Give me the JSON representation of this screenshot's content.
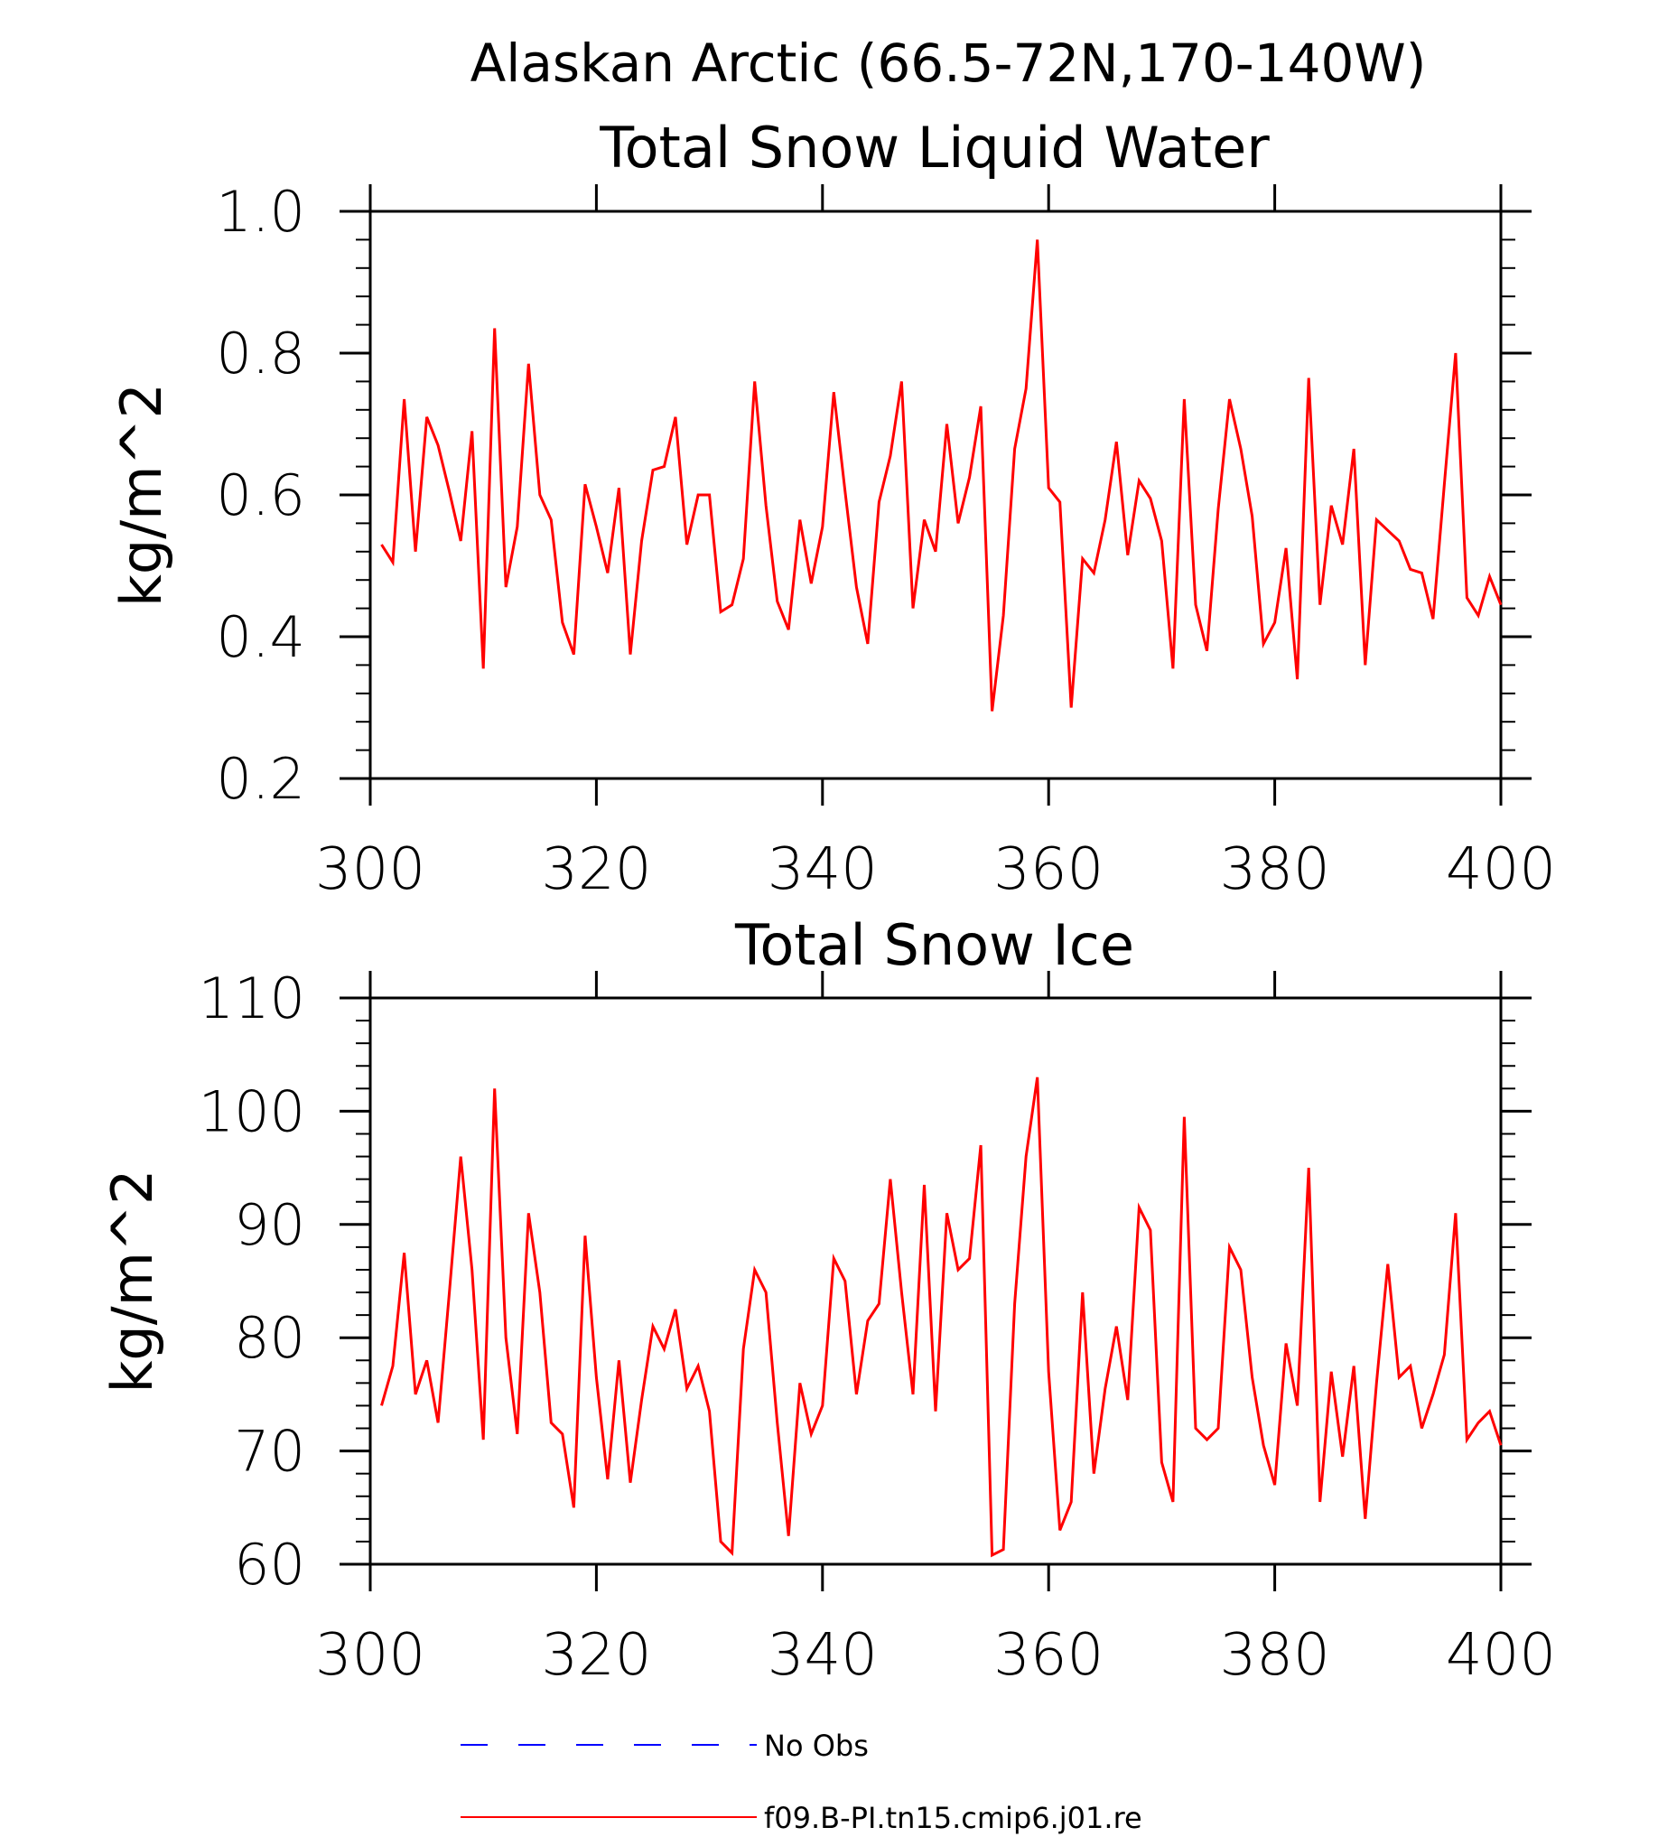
{
  "header": {
    "title": "Alaskan Arctic (66.5-72N,170-140W)"
  },
  "chart_data": [
    {
      "type": "line",
      "title": "Total Snow Liquid Water",
      "ylabel": "kg/m^2",
      "xlabel": "",
      "xlim": [
        300,
        400
      ],
      "ylim": [
        0.2,
        1.0
      ],
      "x_ticks": [
        300,
        320,
        340,
        360,
        380,
        400
      ],
      "y_ticks": [
        0.2,
        0.4,
        0.6,
        0.8,
        1.0
      ],
      "x_tick_labels": [
        "300",
        "320",
        "340",
        "360",
        "380",
        "400"
      ],
      "y_tick_labels": [
        "0.2",
        "0.4",
        "0.6",
        "0.8",
        "1.0"
      ],
      "series": [
        {
          "name": "f09.B-PI.tn15.cmip6.j01.re",
          "color": "#ff0000",
          "x": [
            301,
            302,
            303,
            304,
            305,
            306,
            307,
            308,
            309,
            310,
            311,
            312,
            313,
            314,
            315,
            316,
            317,
            318,
            319,
            320,
            321,
            322,
            323,
            324,
            325,
            326,
            327,
            328,
            329,
            330,
            331,
            332,
            333,
            334,
            335,
            336,
            337,
            338,
            339,
            340,
            341,
            342,
            343,
            344,
            345,
            346,
            347,
            348,
            349,
            350,
            351,
            352,
            353,
            354,
            355,
            356,
            357,
            358,
            359,
            360,
            361,
            362,
            363,
            364,
            365,
            366,
            367,
            368,
            369,
            370,
            371,
            372,
            373,
            374,
            375,
            376,
            377,
            378,
            379,
            380,
            381,
            382,
            383,
            384,
            385,
            386,
            387,
            388,
            389,
            390,
            391,
            392,
            393,
            394,
            395,
            396,
            397,
            398,
            399,
            400
          ],
          "values": [
            0.53,
            0.505,
            0.735,
            0.52,
            0.71,
            0.67,
            0.605,
            0.535,
            0.69,
            0.355,
            0.835,
            0.47,
            0.555,
            0.785,
            0.6,
            0.565,
            0.42,
            0.375,
            0.615,
            0.555,
            0.49,
            0.61,
            0.375,
            0.535,
            0.635,
            0.64,
            0.71,
            0.53,
            0.6,
            0.6,
            0.435,
            0.445,
            0.51,
            0.76,
            0.585,
            0.45,
            0.41,
            0.565,
            0.475,
            0.555,
            0.745,
            0.605,
            0.47,
            0.39,
            0.59,
            0.655,
            0.76,
            0.44,
            0.565,
            0.52,
            0.7,
            0.56,
            0.625,
            0.725,
            0.295,
            0.43,
            0.665,
            0.75,
            0.96,
            0.61,
            0.59,
            0.3,
            0.51,
            0.49,
            0.565,
            0.675,
            0.515,
            0.62,
            0.595,
            0.535,
            0.355,
            0.735,
            0.445,
            0.38,
            0.58,
            0.735,
            0.665,
            0.57,
            0.39,
            0.42,
            0.525,
            0.34,
            0.765,
            0.445,
            0.585,
            0.53,
            0.665,
            0.36,
            0.565,
            0.55,
            0.535,
            0.495,
            0.49,
            0.425,
            0.615,
            0.8,
            0.455,
            0.43,
            0.485,
            0.445
          ]
        }
      ]
    },
    {
      "type": "line",
      "title": "Total Snow Ice",
      "ylabel": "kg/m^2",
      "xlabel": "",
      "xlim": [
        300,
        400
      ],
      "ylim": [
        60,
        110
      ],
      "x_ticks": [
        300,
        320,
        340,
        360,
        380,
        400
      ],
      "y_ticks": [
        60,
        70,
        80,
        90,
        100,
        110
      ],
      "x_tick_labels": [
        "300",
        "320",
        "340",
        "360",
        "380",
        "400"
      ],
      "y_tick_labels": [
        "60",
        "70",
        "80",
        "90",
        "100",
        "110"
      ],
      "series": [
        {
          "name": "f09.B-PI.tn15.cmip6.j01.re",
          "color": "#ff0000",
          "x": [
            301,
            302,
            303,
            304,
            305,
            306,
            307,
            308,
            309,
            310,
            311,
            312,
            313,
            314,
            315,
            316,
            317,
            318,
            319,
            320,
            321,
            322,
            323,
            324,
            325,
            326,
            327,
            328,
            329,
            330,
            331,
            332,
            333,
            334,
            335,
            336,
            337,
            338,
            339,
            340,
            341,
            342,
            343,
            344,
            345,
            346,
            347,
            348,
            349,
            350,
            351,
            352,
            353,
            354,
            355,
            356,
            357,
            358,
            359,
            360,
            361,
            362,
            363,
            364,
            365,
            366,
            367,
            368,
            369,
            370,
            371,
            372,
            373,
            374,
            375,
            376,
            377,
            378,
            379,
            380,
            381,
            382,
            383,
            384,
            385,
            386,
            387,
            388,
            389,
            390,
            391,
            392,
            393,
            394,
            395,
            396,
            397,
            398,
            399,
            400
          ],
          "values": [
            74,
            77.5,
            87.5,
            75,
            78,
            72.5,
            84,
            96,
            86,
            71,
            102,
            80,
            71.5,
            91,
            84,
            72.5,
            71.5,
            65,
            89,
            76.5,
            67.5,
            78,
            67.2,
            74.5,
            81,
            79,
            82.5,
            75.5,
            77.5,
            73.5,
            62,
            61,
            79,
            86,
            84,
            72.5,
            62.5,
            76,
            71.5,
            74,
            87,
            85,
            75,
            81.5,
            83,
            94,
            84,
            75,
            93.5,
            73.5,
            91,
            86,
            87,
            97,
            60.8,
            61.3,
            83,
            96,
            103,
            77,
            63,
            65.5,
            84,
            68,
            75.5,
            81,
            74.5,
            91.5,
            89.5,
            69,
            65.5,
            99.5,
            72,
            71,
            72,
            88,
            86,
            76.5,
            70.5,
            67,
            79.5,
            74,
            95,
            65.5,
            77,
            69.5,
            77.5,
            64,
            76,
            86.5,
            76.5,
            77.5,
            72,
            75,
            78.5,
            91,
            71,
            72.5,
            73.5,
            70.5
          ]
        }
      ]
    }
  ],
  "legend": {
    "placement": "bottom",
    "items": [
      {
        "label": "No Obs",
        "color": "#0000ff",
        "style": "dashed"
      },
      {
        "label": "f09.B-PI.tn15.cmip6.j01.re",
        "color": "#ff0000",
        "style": "solid"
      }
    ]
  }
}
